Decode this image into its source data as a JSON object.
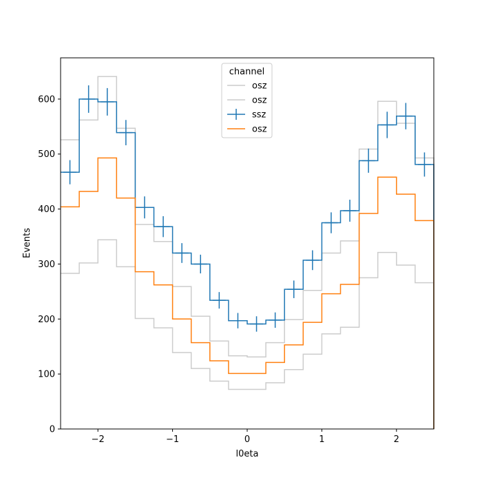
{
  "chart_data": {
    "type": "line",
    "xlabel": "l0eta",
    "ylabel": "Events",
    "xlim": [
      -2.5,
      2.5
    ],
    "ylim": [
      0,
      675
    ],
    "x_ticks": [
      -2,
      -1,
      0,
      1,
      2
    ],
    "y_ticks": [
      0,
      100,
      200,
      300,
      400,
      500,
      600
    ],
    "bin_edges": [
      -2.5,
      -2.25,
      -2.0,
      -1.75,
      -1.5,
      -1.25,
      -1.0,
      -0.75,
      -0.5,
      -0.25,
      0.0,
      0.25,
      0.5,
      0.75,
      1.0,
      1.25,
      1.5,
      1.75,
      2.0,
      2.25,
      2.5
    ],
    "legend": {
      "title": "channel",
      "placement": "top-center"
    },
    "series": [
      {
        "name": "osz",
        "color": "#cccccc",
        "style": "step",
        "values": [
          526,
          562,
          641,
          547,
          372,
          341,
          259,
          205,
          160,
          133,
          131,
          157,
          199,
          252,
          320,
          342,
          509,
          596,
          556,
          493
        ]
      },
      {
        "name": "osz",
        "color": "#cccccc",
        "style": "step",
        "values": [
          283,
          302,
          344,
          295,
          201,
          184,
          139,
          110,
          87,
          72,
          72,
          84,
          108,
          136,
          173,
          185,
          275,
          321,
          298,
          266
        ]
      },
      {
        "name": "ssz",
        "color": "#1f77b4",
        "style": "step-errorbar",
        "values": [
          467,
          600,
          595,
          539,
          403,
          368,
          320,
          300,
          234,
          197,
          191,
          198,
          254,
          307,
          375,
          397,
          488,
          553,
          569,
          481
        ],
        "errors": [
          22,
          25,
          25,
          23,
          20,
          19,
          18,
          17,
          15,
          14,
          14,
          14,
          16,
          18,
          19,
          20,
          22,
          24,
          24,
          22
        ]
      },
      {
        "name": "osz",
        "color": "#ff7f0e",
        "style": "step",
        "values": [
          404,
          432,
          493,
          420,
          286,
          262,
          200,
          157,
          124,
          101,
          101,
          121,
          153,
          194,
          246,
          263,
          392,
          458,
          427,
          379
        ]
      }
    ]
  }
}
